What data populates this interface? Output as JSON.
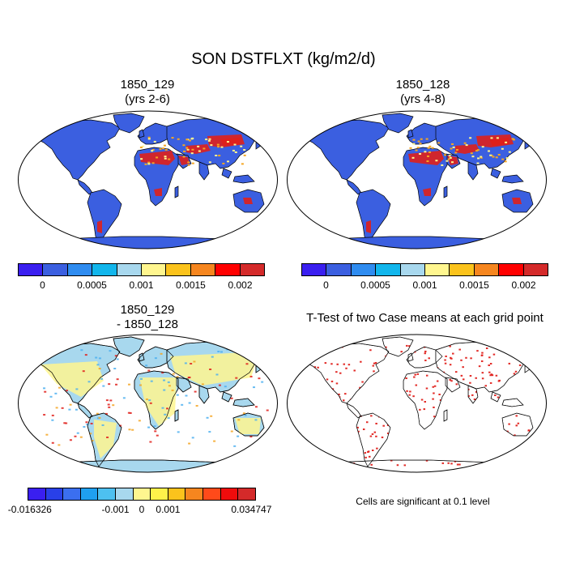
{
  "title": "SON DSTFLXT (kg/m2/d)",
  "colors": {
    "ocean": "#ffffff",
    "coastline": "#000000",
    "land_base": "#3b5fe0",
    "dust_high": "#e0201b",
    "dust_mid": "#f5a623",
    "dust_low": "#fff68f",
    "diff_base": "#a8d8ee",
    "diff_pos_small": "#fff68f",
    "diff_neg_small": "#4db0f0",
    "significant": "#e0201b"
  },
  "panels": [
    {
      "id": "case1",
      "title_line1": "1850_129",
      "title_line2": "(yrs 2-6)",
      "style": "field"
    },
    {
      "id": "case2",
      "title_line1": "1850_128",
      "title_line2": "(yrs 4-8)",
      "style": "field"
    },
    {
      "id": "diff",
      "title_line1": "1850_129",
      "title_line2": "- 1850_128",
      "style": "diff"
    },
    {
      "id": "ttest",
      "title_line1": "T-Test of two Case means at each grid point",
      "title_line2": "",
      "style": "ttest"
    }
  ],
  "colorbars": {
    "field": {
      "colors": [
        "#3a1ff0",
        "#3b5fe0",
        "#2f8cf0",
        "#12b6ec",
        "#a8d8ee",
        "#fff68f",
        "#fbc31c",
        "#f6861f",
        "#ff0000",
        "#d42a2a"
      ],
      "labels": [
        "0",
        "0.0005",
        "0.001",
        "0.0015",
        "0.002"
      ]
    },
    "diff": {
      "colors": [
        "#3a1ff0",
        "#2940e8",
        "#3b6ff0",
        "#1fa0f0",
        "#4dc0f0",
        "#a8d8ee",
        "#fff68f",
        "#fff24a",
        "#fbc31c",
        "#f6861f",
        "#ff4a1a",
        "#f00c0c",
        "#d42a2a"
      ],
      "labels": [
        "-0.016326",
        "-0.001",
        "0",
        "0.001",
        "0.034747"
      ]
    }
  },
  "significance_note": "Cells are significant at 0.1 level"
}
